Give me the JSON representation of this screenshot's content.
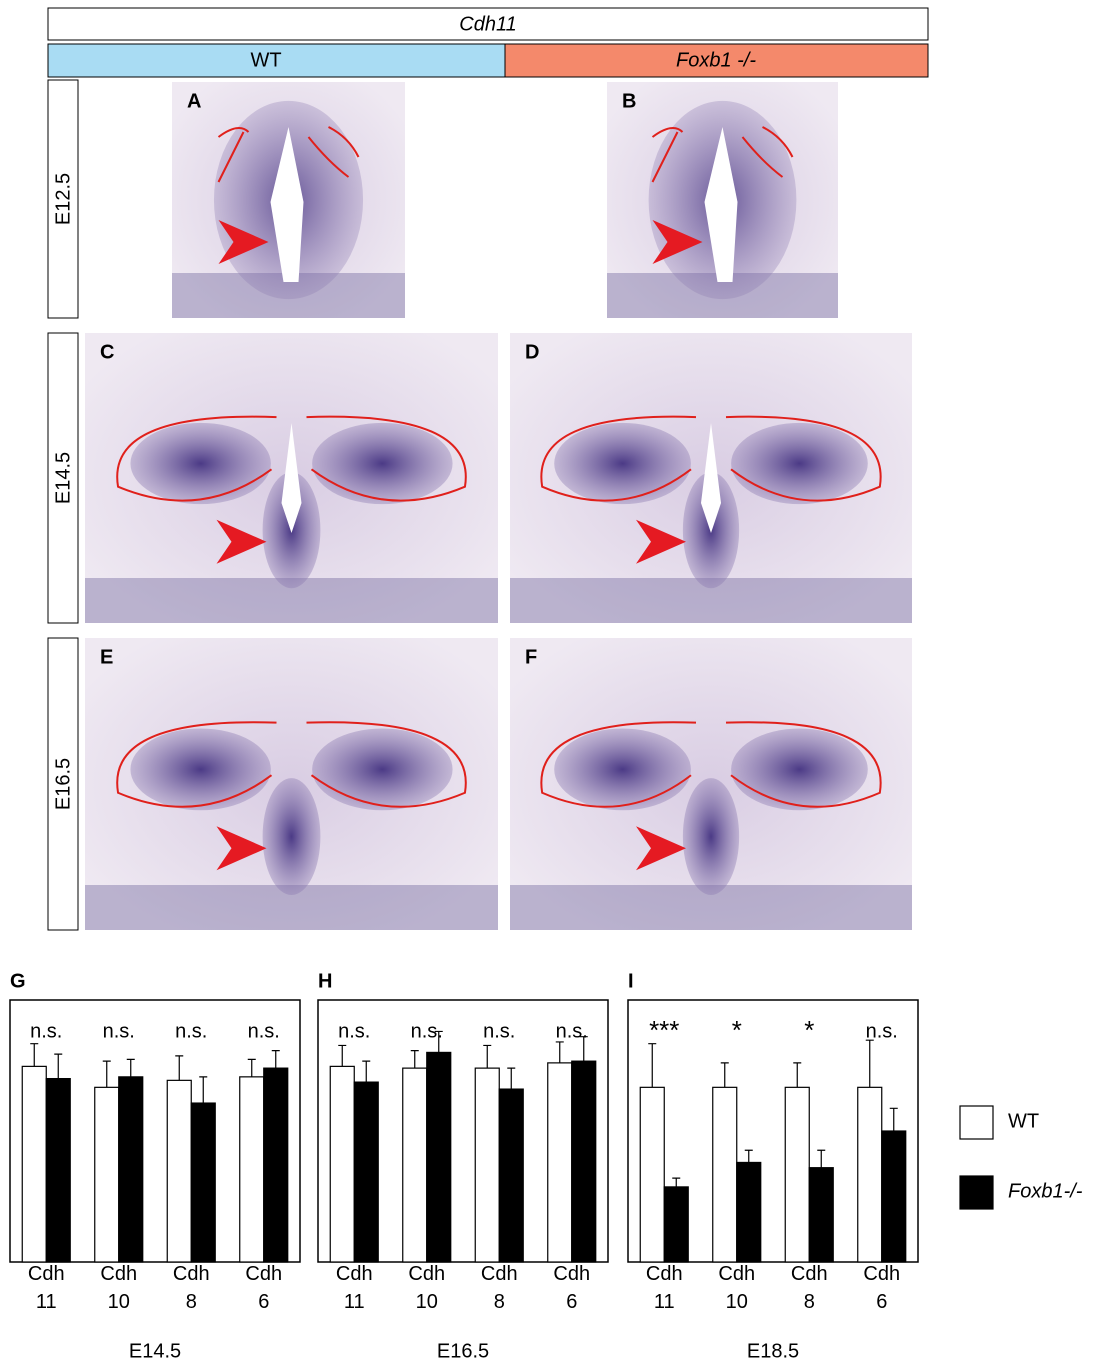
{
  "figure": {
    "gene": "Cdh11",
    "columns": [
      "WT",
      "Foxb1 -/-"
    ],
    "rows": [
      "E12.5",
      "E14.5",
      "E16.5"
    ],
    "panels": [
      "A",
      "B",
      "C",
      "D",
      "E",
      "F"
    ]
  },
  "chart_data": [
    {
      "type": "bar",
      "panel": "G",
      "title": "E14.5",
      "categories": [
        "Cdh 11",
        "Cdh 10",
        "Cdh 8",
        "Cdh 6"
      ],
      "ylim": [
        0,
        1.5
      ],
      "annotations": [
        "n.s.",
        "n.s.",
        "n.s.",
        "n.s."
      ],
      "series": [
        {
          "name": "WT",
          "color": "#ffffff",
          "values": [
            1.12,
            1.0,
            1.04,
            1.06
          ],
          "errors": [
            0.13,
            0.15,
            0.14,
            0.1
          ]
        },
        {
          "name": "Foxb1-/-",
          "color": "#000000",
          "values": [
            1.05,
            1.06,
            0.91,
            1.11
          ],
          "errors": [
            0.14,
            0.1,
            0.15,
            0.1
          ]
        }
      ]
    },
    {
      "type": "bar",
      "panel": "H",
      "title": "E16.5",
      "categories": [
        "Cdh 11",
        "Cdh 10",
        "Cdh 8",
        "Cdh 6"
      ],
      "ylim": [
        0,
        1.5
      ],
      "annotations": [
        "n.s.",
        "n.s.",
        "n.s.",
        "n.s."
      ],
      "series": [
        {
          "name": "WT",
          "color": "#ffffff",
          "values": [
            1.12,
            1.11,
            1.11,
            1.14
          ],
          "errors": [
            0.12,
            0.1,
            0.13,
            0.12
          ]
        },
        {
          "name": "Foxb1-/-",
          "color": "#000000",
          "values": [
            1.03,
            1.2,
            0.99,
            1.15
          ],
          "errors": [
            0.12,
            0.12,
            0.12,
            0.14
          ]
        }
      ]
    },
    {
      "type": "bar",
      "panel": "I",
      "title": "E18.5",
      "categories": [
        "Cdh 11",
        "Cdh 10",
        "Cdh 8",
        "Cdh 6"
      ],
      "ylim": [
        0,
        1.5
      ],
      "annotations": [
        "***",
        "*",
        "*",
        "n.s."
      ],
      "series": [
        {
          "name": "WT",
          "color": "#ffffff",
          "values": [
            1.0,
            1.0,
            1.0,
            1.0
          ],
          "errors": [
            0.25,
            0.14,
            0.14,
            0.27
          ]
        },
        {
          "name": "Foxb1-/-",
          "color": "#000000",
          "values": [
            0.43,
            0.57,
            0.54,
            0.75
          ],
          "errors": [
            0.05,
            0.07,
            0.1,
            0.13
          ]
        }
      ]
    }
  ]
}
